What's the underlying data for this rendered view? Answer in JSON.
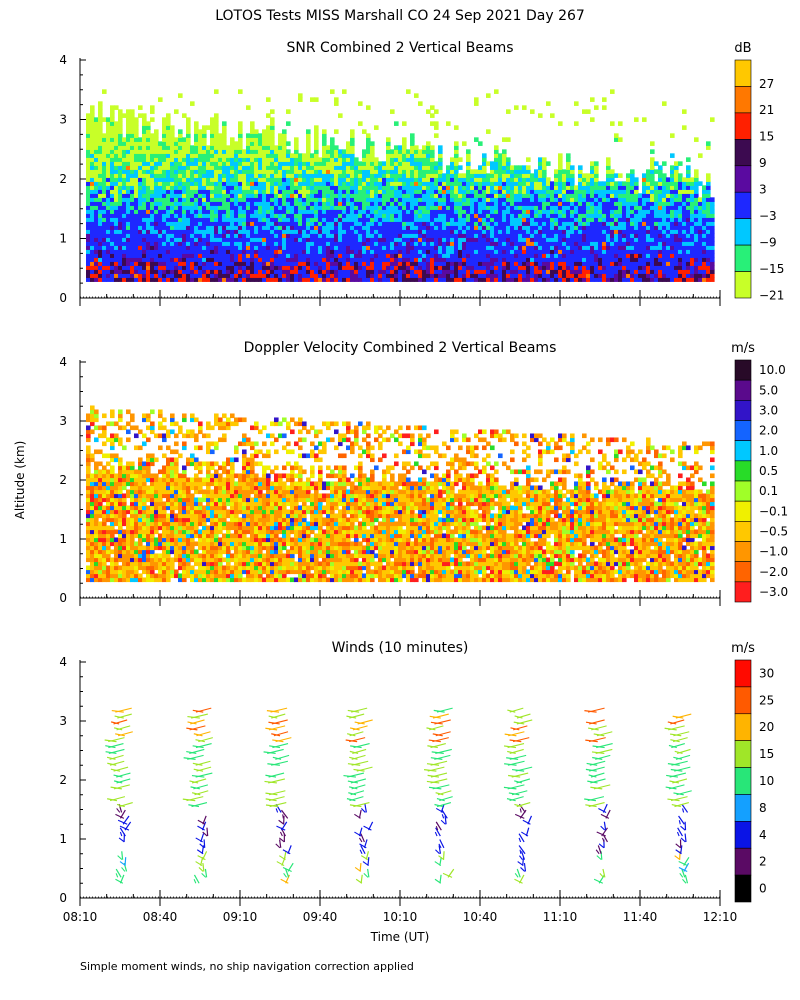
{
  "figure": {
    "title": "LOTOS Tests MISS Marshall CO  24 Sep 2021 Day 267",
    "footnote": "Simple moment winds, no ship navigation correction applied",
    "ylabel": "Altitude (km)",
    "xlabel": "Time (UT)"
  },
  "chart_data": [
    {
      "type": "heatmap",
      "title": "SNR Combined 2 Vertical Beams",
      "units": "dB",
      "x_ticks": [
        "08:10",
        "08:40",
        "09:10",
        "09:40",
        "10:10",
        "10:40",
        "11:10",
        "11:40",
        "12:10"
      ],
      "y_ticks": [
        "0",
        "1",
        "2",
        "3",
        "4"
      ],
      "ylim": [
        0,
        4
      ],
      "colorbar_labels": [
        "27",
        "21",
        "15",
        "9",
        "3",
        "−3",
        "−9",
        "−15",
        "−21"
      ],
      "colorbar_colors": [
        "#ffc800",
        "#ff7800",
        "#ff2000",
        "#3c0a50",
        "#5a0aa0",
        "#1e28ff",
        "#00c8ff",
        "#28f078",
        "#c8ff28"
      ],
      "description": "SNR fills altitudes ~0.25–3.4 km; strongest (blue/purple, red spots) below 2 km; green/yellow above 2 km."
    },
    {
      "type": "heatmap",
      "title": "Doppler Velocity Combined 2 Vertical Beams",
      "units": "m/s",
      "x_ticks": [
        "08:10",
        "08:40",
        "09:10",
        "09:40",
        "10:10",
        "10:40",
        "11:10",
        "11:40",
        "12:10"
      ],
      "y_ticks": [
        "0",
        "1",
        "2",
        "3",
        "4"
      ],
      "ylim": [
        0,
        4
      ],
      "colorbar_labels": [
        "10.0",
        "5.0",
        "3.0",
        "2.0",
        "1.0",
        "0.5",
        "0.1",
        "−0.1",
        "−0.5",
        "−1.0",
        "−2.0",
        "−3.0"
      ],
      "colorbar_colors": [
        "#280a28",
        "#5a0a8c",
        "#3214c8",
        "#1464ff",
        "#00c8ff",
        "#28dc28",
        "#a0ff28",
        "#f0f000",
        "#ffc800",
        "#ff9600",
        "#ff6400",
        "#ff1e1e"
      ],
      "description": "Mostly -0.1 to -2.0 m/s (yellow/orange) between 0.25 and ~2 km, sparse above to ~3.2 km."
    },
    {
      "type": "scatter",
      "title": "Winds (10 minutes)",
      "units": "m/s",
      "x_ticks": [
        "08:10",
        "08:40",
        "09:10",
        "09:40",
        "10:10",
        "10:40",
        "11:10",
        "11:40",
        "12:10"
      ],
      "y_ticks": [
        "0",
        "1",
        "2",
        "3",
        "4"
      ],
      "ylim": [
        0,
        4
      ],
      "colorbar_labels": [
        "30",
        "25",
        "20",
        "15",
        "10",
        "8",
        "4",
        "2",
        "0"
      ],
      "colorbar_colors": [
        "#ff0a00",
        "#ff5a00",
        "#ffb400",
        "#a0e628",
        "#28e678",
        "#14a0ff",
        "#0a14e6",
        "#5a0a64",
        "#000000"
      ],
      "profile_times": [
        "08:25",
        "08:55",
        "09:25",
        "09:55",
        "10:25",
        "10:55",
        "11:25",
        "11:55"
      ],
      "description": "Wind barb profiles every 30 minutes from ~0.2 km to ~3.2 km; weak (purple/blue) winds near 1 km, 15–20 m/s (green) above 1.5 km."
    }
  ]
}
